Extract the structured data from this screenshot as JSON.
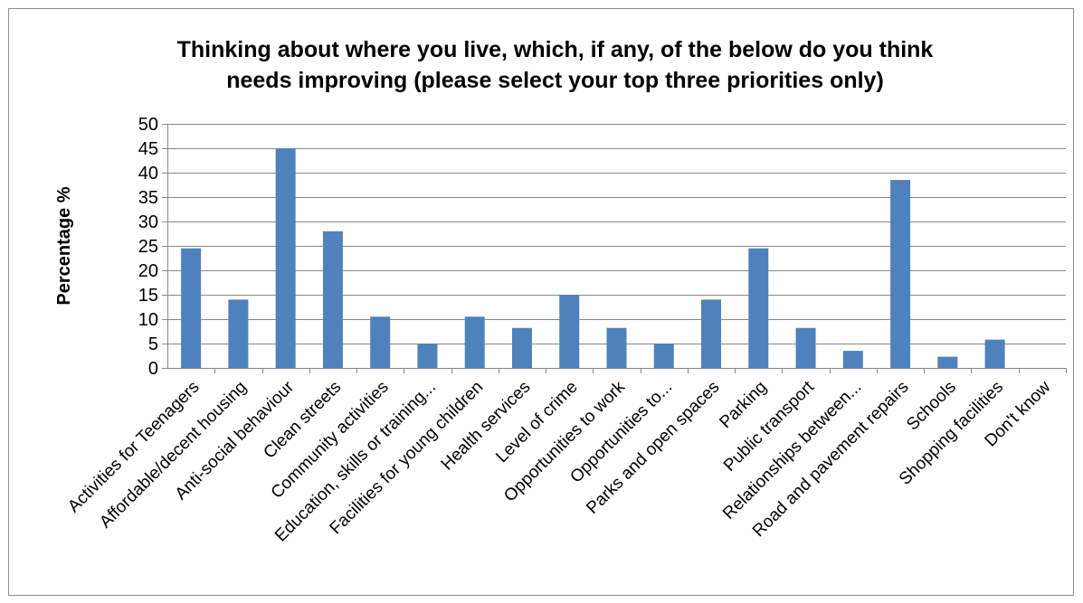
{
  "chart_data": {
    "type": "bar",
    "title_lines": [
      "Thinking about where you live, which, if any, of the below do you think",
      "needs improving (please select your top three priorities only)"
    ],
    "xlabel": "",
    "ylabel": "Percentage %",
    "ylim": [
      0,
      50
    ],
    "yticks": [
      0,
      5,
      10,
      15,
      20,
      25,
      30,
      35,
      40,
      45,
      50
    ],
    "grid": true,
    "legend": "none",
    "bar_color": "#4f81bd",
    "categories": [
      "Activities for Teenagers",
      "Affordable/decent housing",
      "Anti-social behaviour",
      "Clean streets",
      "Community activities",
      "Education, skills or training...",
      "Facilities for young children",
      "Health services",
      "Level of crime",
      "Opportunities to work",
      "Opportunities to...",
      "Parks and open spaces",
      "Parking",
      "Public transport",
      "Relationships between...",
      "Road and pavement repairs",
      "Schools",
      "Shopping facilities",
      "Don't know"
    ],
    "values": [
      24.5,
      14,
      45,
      28,
      10.5,
      5,
      10.5,
      8.2,
      15,
      8.2,
      5,
      14,
      24.5,
      8.2,
      3.5,
      38.5,
      2.3,
      5.8,
      0
    ]
  }
}
